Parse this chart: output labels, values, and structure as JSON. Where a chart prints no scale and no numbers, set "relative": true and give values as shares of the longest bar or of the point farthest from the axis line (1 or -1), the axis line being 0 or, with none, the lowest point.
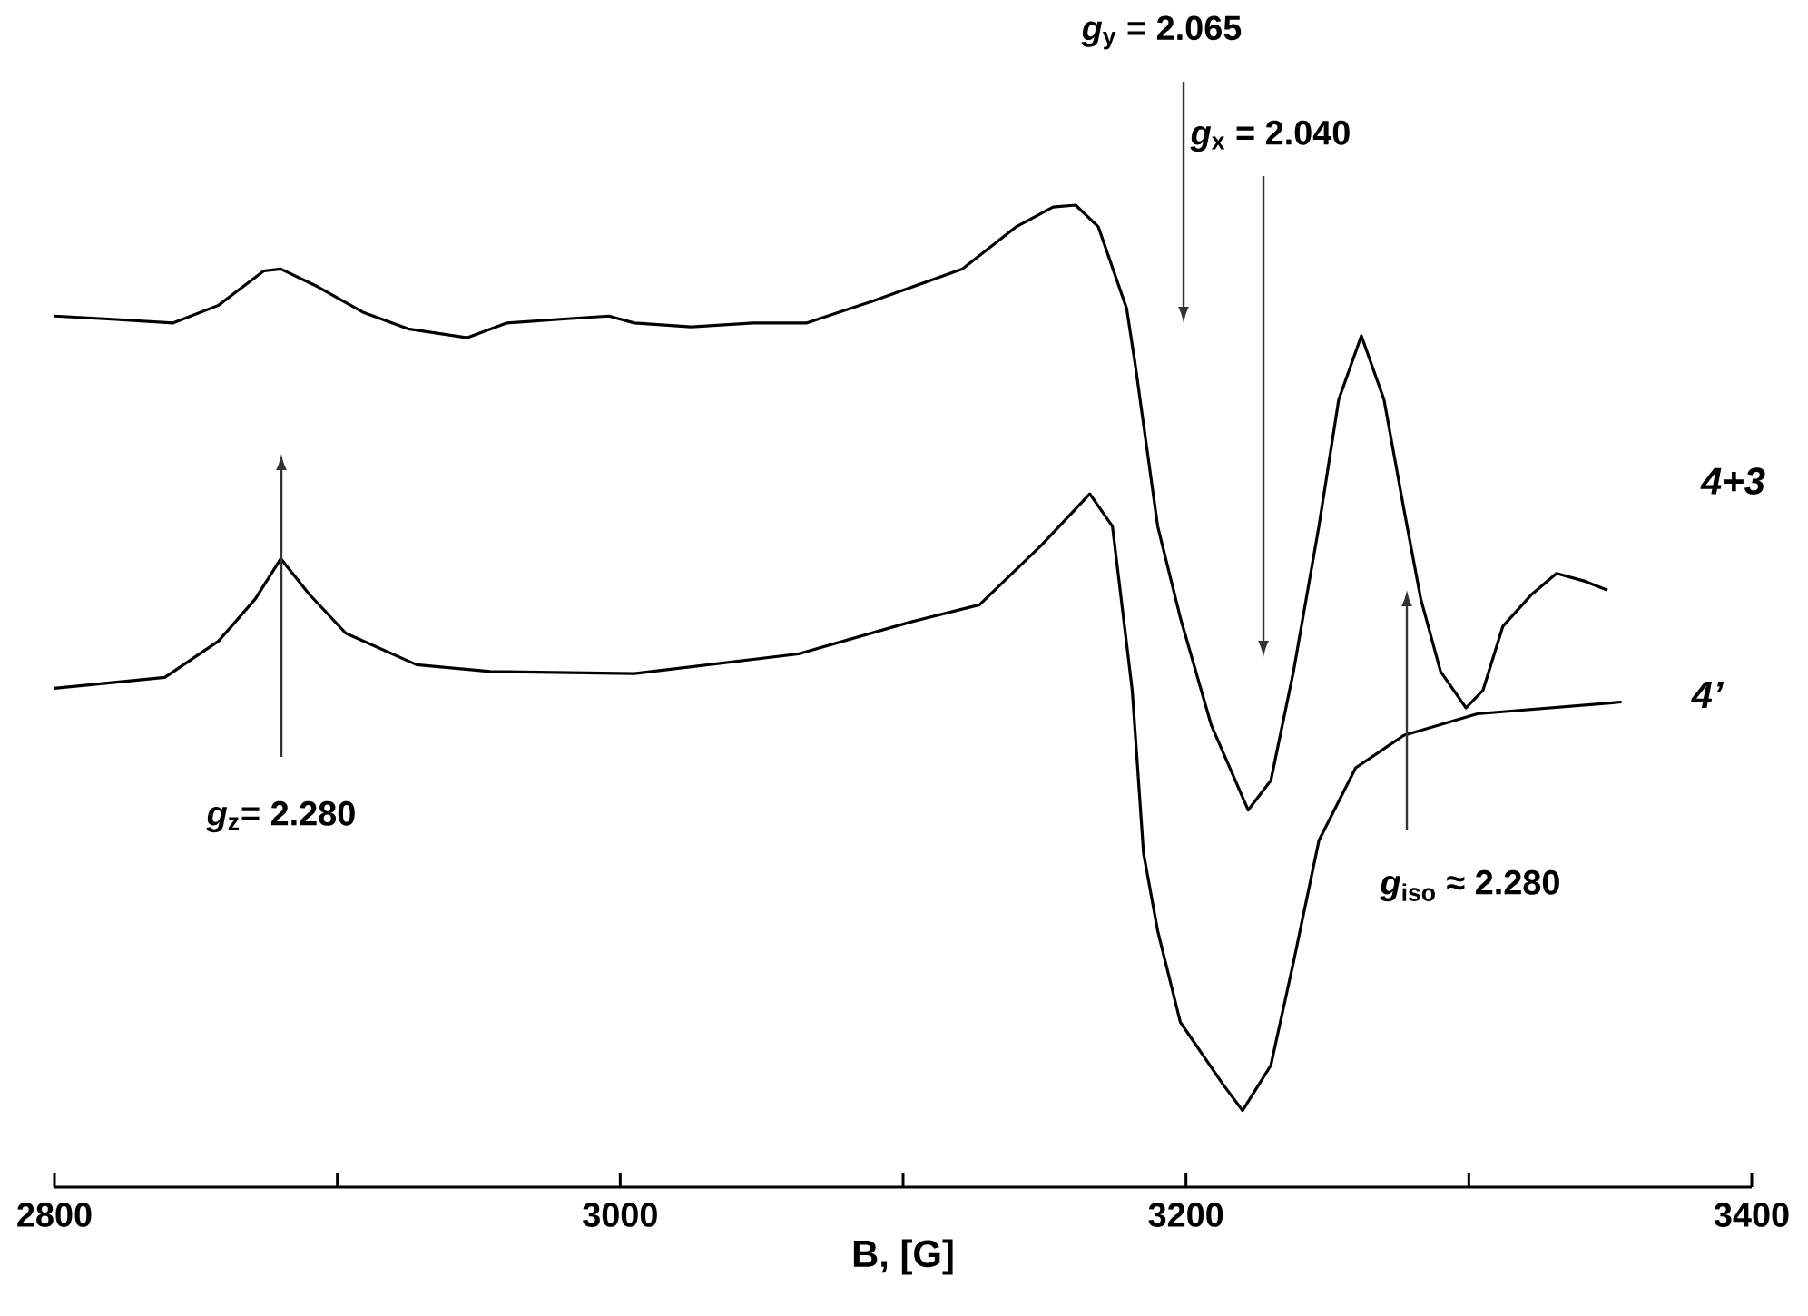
{
  "chart_data": {
    "type": "line",
    "relative": true,
    "xlabel": "B, [G]",
    "xlim": [
      2800,
      3400
    ],
    "xticks": [
      2800,
      {
        "value": 2900,
        "label": null
      },
      3000,
      {
        "value": 3100,
        "label": null
      },
      3200,
      {
        "value": 3300,
        "label": null
      },
      3400
    ],
    "series": [
      {
        "name": "4+3",
        "color": "#000000",
        "x": [
          2800,
          2819,
          2842,
          2858,
          2874,
          2880,
          2893,
          2909,
          2925,
          2946,
          2960,
          2980,
          2996,
          3005,
          3025,
          3047,
          3066,
          3089,
          3121,
          3140,
          3153,
          3161,
          3169,
          3179,
          3182,
          3190,
          3198,
          3209,
          3222,
          3230,
          3238,
          3247,
          3254,
          3262,
          3270,
          3277,
          3283,
          3290,
          3299,
          3305,
          3312,
          3322,
          3331,
          3341,
          3349
        ],
        "values": [
          0.887,
          0.884,
          0.88,
          0.898,
          0.933,
          0.935,
          0.917,
          0.891,
          0.874,
          0.865,
          0.88,
          0.884,
          0.887,
          0.88,
          0.876,
          0.88,
          0.88,
          0.902,
          0.935,
          0.978,
          0.998,
          1.0,
          0.978,
          0.895,
          0.839,
          0.673,
          0.58,
          0.47,
          0.384,
          0.414,
          0.525,
          0.673,
          0.802,
          0.867,
          0.802,
          0.691,
          0.599,
          0.525,
          0.488,
          0.506,
          0.571,
          0.603,
          0.625,
          0.617,
          0.608
        ]
      },
      {
        "name": "4’",
        "color": "#000000",
        "x": [
          2800,
          2839,
          2858,
          2871,
          2880,
          2890,
          2903,
          2928,
          2954,
          3005,
          3063,
          3102,
          3127,
          3149,
          3166,
          3174,
          3181,
          3185,
          3190,
          3198,
          3213,
          3220,
          3230,
          3238,
          3247,
          3260,
          3277,
          3303,
          3354
        ],
        "values": [
          0.508,
          0.519,
          0.556,
          0.599,
          0.64,
          0.604,
          0.564,
          0.532,
          0.525,
          0.523,
          0.543,
          0.575,
          0.593,
          0.654,
          0.706,
          0.673,
          0.506,
          0.34,
          0.261,
          0.168,
          0.105,
          0.078,
          0.124,
          0.229,
          0.353,
          0.427,
          0.46,
          0.482,
          0.494
        ]
      }
    ],
    "annotations": [
      "*g*$_{y}$ = 2.065",
      "*g*$_{x}$ = 2.040",
      "*g*$_{z}$= 2.280",
      "*g*$_{iso}$ ≈ 2.280"
    ]
  }
}
